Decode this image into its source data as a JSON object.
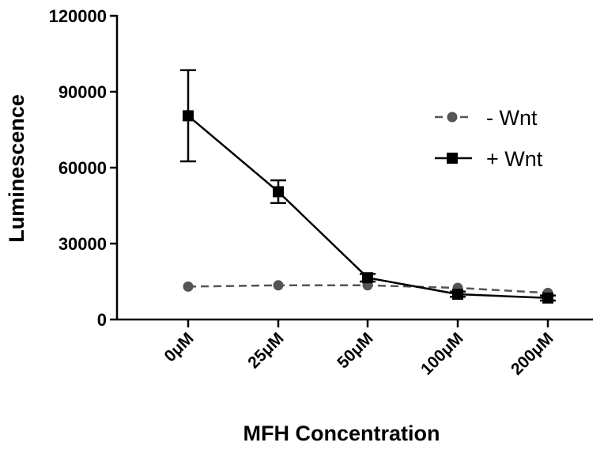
{
  "chart_data": {
    "type": "line",
    "title": "",
    "xlabel": "MFH Concentration",
    "ylabel": "Luminescence",
    "categories": [
      "0μM",
      "25μM",
      "50μM",
      "100μM",
      "200μM"
    ],
    "ylim": [
      0,
      120000
    ],
    "yticks": [
      0,
      30000,
      60000,
      90000,
      120000
    ],
    "grid": false,
    "legend_position": "top-right",
    "series": [
      {
        "name": "- Wnt",
        "style": "dashed",
        "marker": "circle",
        "color": "#555555",
        "values": [
          13000,
          13500,
          13500,
          12500,
          10500
        ],
        "errors": [
          0,
          0,
          0,
          0,
          0
        ]
      },
      {
        "name": "+ Wnt",
        "style": "solid",
        "marker": "square",
        "color": "#000000",
        "values": [
          80500,
          50500,
          16500,
          10000,
          8500
        ],
        "errors": [
          18000,
          4500,
          1500,
          1000,
          1000
        ]
      }
    ]
  }
}
